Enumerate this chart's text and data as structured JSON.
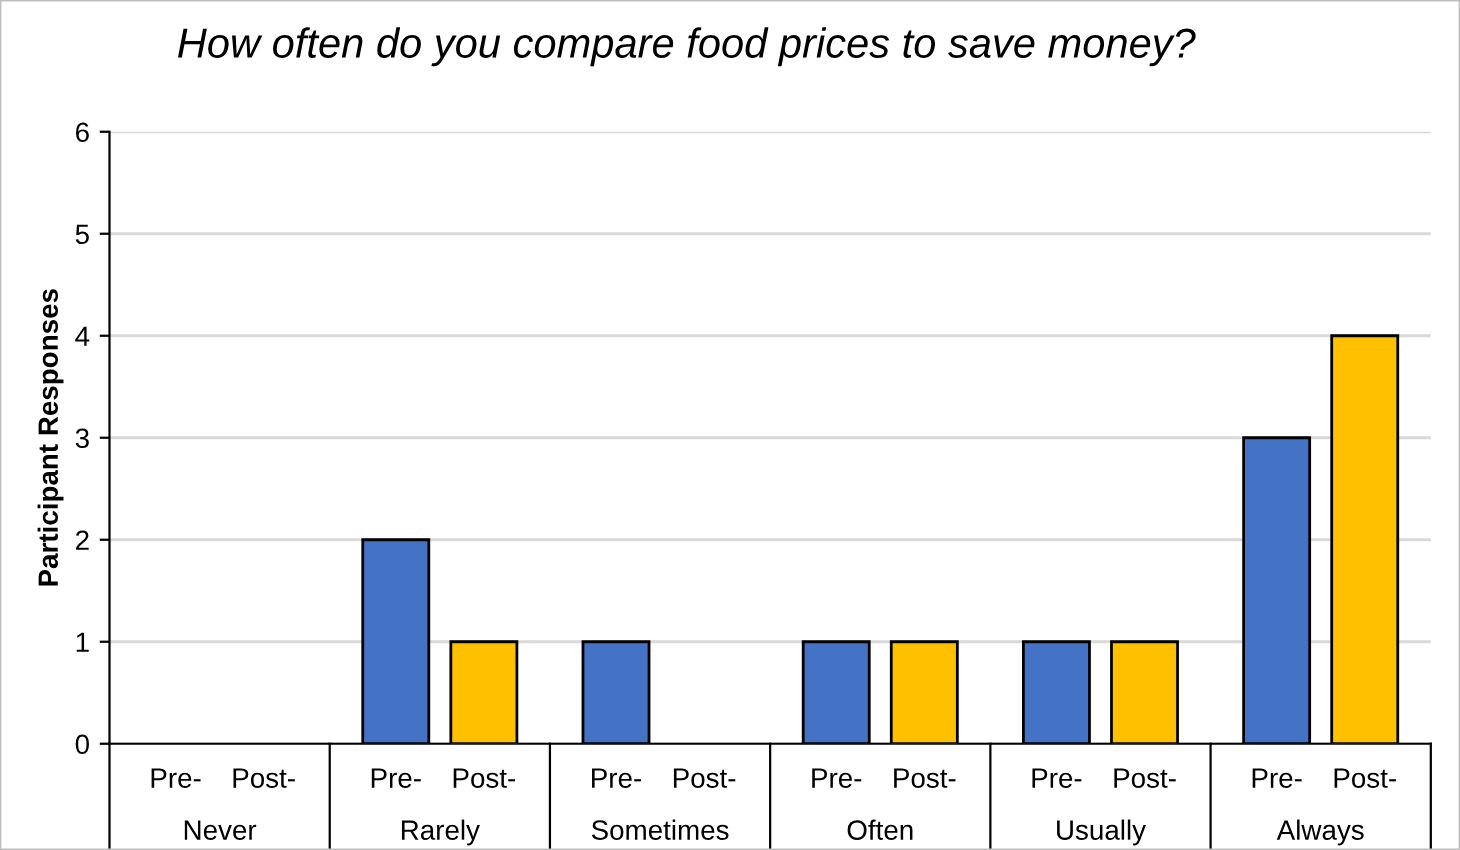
{
  "chart_data": {
    "type": "bar",
    "title": "How often do you compare food prices to save money?",
    "ylabel": "Participant Responses",
    "categories": [
      "Never",
      "Rarely",
      "Sometimes",
      "Often",
      "Usually",
      "Always"
    ],
    "series": [
      {
        "name": "Pre-",
        "color": "#4472c4",
        "values": [
          0,
          2,
          1,
          1,
          1,
          3
        ]
      },
      {
        "name": "Post-",
        "color": "#ffc000",
        "values": [
          0,
          1,
          0,
          1,
          1,
          4
        ]
      }
    ],
    "ylim": [
      0,
      6
    ],
    "yticks": [
      0,
      1,
      2,
      3,
      4,
      5,
      6
    ],
    "grid": "y",
    "legend": false
  }
}
